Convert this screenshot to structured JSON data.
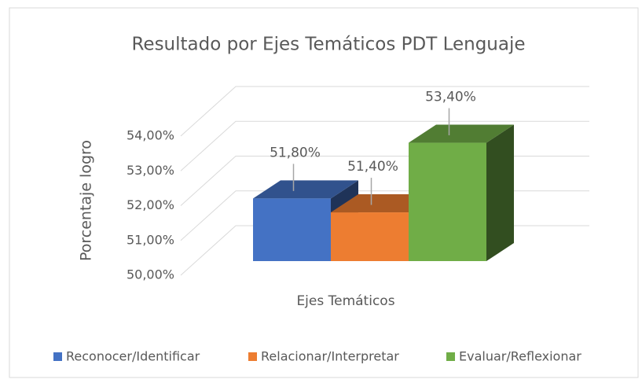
{
  "chart_data": {
    "type": "bar3d",
    "title": "Resultado por Ejes Temáticos PDT Lenguaje",
    "x_label": "Ejes Temáticos",
    "y_label": "Porcentaje logro",
    "series": [
      {
        "name": "Reconocer/Identificar",
        "color": "#4472c4",
        "values": [
          51.8
        ],
        "value_labels": [
          "51,80%"
        ]
      },
      {
        "name": "Relacionar/Interpretar",
        "color": "#ed7d31",
        "values": [
          51.4
        ],
        "value_labels": [
          "51,40%"
        ]
      },
      {
        "name": "Evaluar/Reflexionar",
        "color": "#70ad47",
        "values": [
          53.4
        ],
        "value_labels": [
          "53,40%"
        ]
      }
    ],
    "ylim": [
      50,
      54
    ],
    "yticks": [
      {
        "value": 50,
        "label": "50,00%"
      },
      {
        "value": 51,
        "label": "51,00%"
      },
      {
        "value": 52,
        "label": "52,00%"
      },
      {
        "value": 53,
        "label": "53,00%"
      },
      {
        "value": 54,
        "label": "54,00%"
      }
    ],
    "grid": true,
    "legend": "bottom"
  }
}
